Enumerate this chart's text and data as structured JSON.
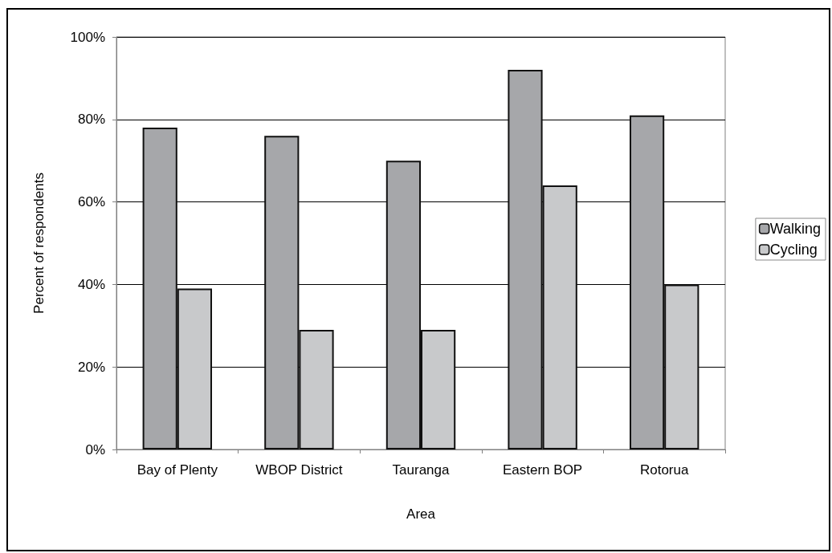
{
  "chart_data": {
    "type": "bar",
    "xlabel": "Area",
    "ylabel": "Percent of respondents",
    "categories": [
      "Bay of Plenty",
      "WBOP District",
      "Tauranga",
      "Eastern BOP",
      "Rotorua"
    ],
    "series": [
      {
        "name": "Walking",
        "color": "#a6a7aa",
        "values": [
          78,
          76,
          70,
          92,
          81
        ]
      },
      {
        "name": "Cycling",
        "color": "#c8c9cb",
        "values": [
          39,
          29,
          29,
          64,
          40
        ]
      }
    ],
    "ylim": [
      0,
      100
    ],
    "yticks": [
      {
        "value": 0,
        "label": "0%"
      },
      {
        "value": 20,
        "label": "20%"
      },
      {
        "value": 40,
        "label": "40%"
      },
      {
        "value": 60,
        "label": "60%"
      },
      {
        "value": 80,
        "label": "80%"
      },
      {
        "value": 100,
        "label": "100%"
      }
    ],
    "grid": "y",
    "legend": "right"
  }
}
